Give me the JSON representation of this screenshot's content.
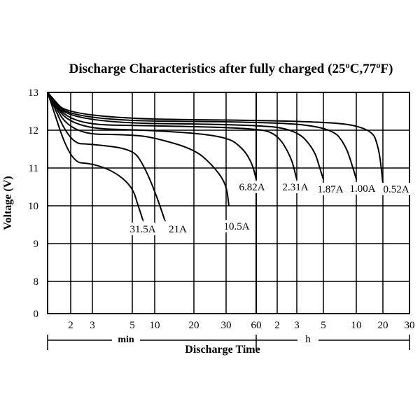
{
  "chart_data": {
    "type": "line",
    "title": "Discharge Characteristics after fully  charged (25ºC,77ºF)",
    "ylabel": "Voltage   (V)",
    "xlabel": "Discharge  Time",
    "ylim": [
      0,
      13
    ],
    "yticks": [
      "0",
      "8",
      "9",
      "10",
      "11",
      "12",
      "13"
    ],
    "x_axis_note": "y axis broken between 0 and 8",
    "x_segments": [
      {
        "unit": "min",
        "ticks": [
          "2",
          "3",
          "5",
          "10",
          "20",
          "30",
          "60"
        ]
      },
      {
        "unit": "h",
        "ticks": [
          "2",
          "3",
          "5",
          "10",
          "20",
          "30"
        ]
      }
    ],
    "grid": true,
    "series": [
      {
        "name": "31.5A",
        "points": [
          [
            0,
            13.0
          ],
          [
            2,
            11.15
          ],
          [
            3,
            11.12
          ],
          [
            4,
            10.9
          ],
          [
            5,
            10.5
          ],
          [
            6,
            10.0
          ],
          [
            7,
            9.6
          ]
        ]
      },
      {
        "name": "21A",
        "points": [
          [
            0,
            13.0
          ],
          [
            2,
            11.65
          ],
          [
            3,
            11.63
          ],
          [
            5,
            11.5
          ],
          [
            7,
            11.1
          ],
          [
            10,
            10.4
          ],
          [
            12,
            9.6
          ]
        ]
      },
      {
        "name": "10.5A",
        "points": [
          [
            0,
            13.0
          ],
          [
            2,
            11.9
          ],
          [
            5,
            11.88
          ],
          [
            10,
            11.8
          ],
          [
            20,
            11.5
          ],
          [
            25,
            11.1
          ],
          [
            30,
            10.6
          ],
          [
            32,
            10.0
          ]
        ]
      },
      {
        "name": "6.82A",
        "points": [
          [
            0,
            13.0
          ],
          [
            2,
            12.05
          ],
          [
            10,
            12.0
          ],
          [
            30,
            11.85
          ],
          [
            45,
            11.5
          ],
          [
            55,
            11.1
          ],
          [
            60,
            10.7
          ]
        ]
      },
      {
        "name": "2.31A",
        "points": [
          [
            0,
            13.0
          ],
          [
            2,
            12.15
          ],
          [
            10,
            12.12
          ],
          [
            60,
            12.05
          ],
          [
            120,
            11.9
          ],
          [
            160,
            11.3
          ],
          [
            180,
            10.7
          ]
        ]
      },
      {
        "name": "1.87A",
        "points": [
          [
            0,
            13.0
          ],
          [
            2,
            12.2
          ],
          [
            60,
            12.15
          ],
          [
            180,
            12.0
          ],
          [
            250,
            11.5
          ],
          [
            280,
            11.0
          ],
          [
            300,
            10.7
          ]
        ]
      },
      {
        "name": "1.00A",
        "points": [
          [
            0,
            13.0
          ],
          [
            2,
            12.25
          ],
          [
            120,
            12.22
          ],
          [
            360,
            12.05
          ],
          [
            480,
            11.6
          ],
          [
            560,
            11.0
          ],
          [
            600,
            10.7
          ]
        ]
      },
      {
        "name": "0.52A",
        "points": [
          [
            0,
            13.0
          ],
          [
            2,
            12.3
          ],
          [
            300,
            12.25
          ],
          [
            900,
            12.05
          ],
          [
            1080,
            11.5
          ],
          [
            1150,
            11.0
          ],
          [
            1200,
            10.6
          ]
        ]
      }
    ]
  }
}
